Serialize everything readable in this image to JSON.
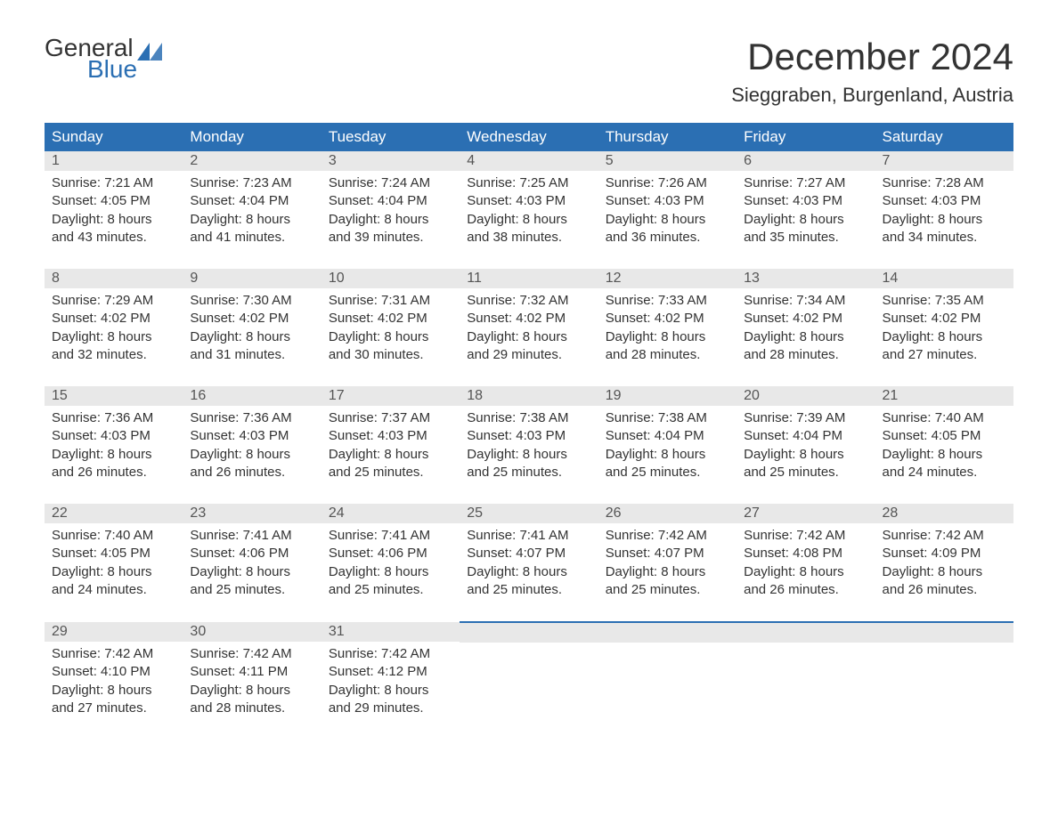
{
  "logo": {
    "line1": "General",
    "line2": "Blue"
  },
  "title": "December 2024",
  "location": "Sieggraben, Burgenland, Austria",
  "colors": {
    "header_bg": "#2b6fb3",
    "header_text": "#ffffff",
    "daynum_bg": "#e8e8e8",
    "daynum_text": "#555555",
    "body_text": "#333333",
    "row_border": "#2b6fb3",
    "logo_general": "#333333",
    "logo_blue": "#2b6fb3",
    "page_bg": "#ffffff"
  },
  "day_headers": [
    "Sunday",
    "Monday",
    "Tuesday",
    "Wednesday",
    "Thursday",
    "Friday",
    "Saturday"
  ],
  "labels": {
    "sunrise": "Sunrise:",
    "sunset": "Sunset:",
    "daylight": "Daylight:"
  },
  "weeks": [
    [
      {
        "day": "1",
        "sunrise": "7:21 AM",
        "sunset": "4:05 PM",
        "daylight1": "8 hours",
        "daylight2": "and 43 minutes."
      },
      {
        "day": "2",
        "sunrise": "7:23 AM",
        "sunset": "4:04 PM",
        "daylight1": "8 hours",
        "daylight2": "and 41 minutes."
      },
      {
        "day": "3",
        "sunrise": "7:24 AM",
        "sunset": "4:04 PM",
        "daylight1": "8 hours",
        "daylight2": "and 39 minutes."
      },
      {
        "day": "4",
        "sunrise": "7:25 AM",
        "sunset": "4:03 PM",
        "daylight1": "8 hours",
        "daylight2": "and 38 minutes."
      },
      {
        "day": "5",
        "sunrise": "7:26 AM",
        "sunset": "4:03 PM",
        "daylight1": "8 hours",
        "daylight2": "and 36 minutes."
      },
      {
        "day": "6",
        "sunrise": "7:27 AM",
        "sunset": "4:03 PM",
        "daylight1": "8 hours",
        "daylight2": "and 35 minutes."
      },
      {
        "day": "7",
        "sunrise": "7:28 AM",
        "sunset": "4:03 PM",
        "daylight1": "8 hours",
        "daylight2": "and 34 minutes."
      }
    ],
    [
      {
        "day": "8",
        "sunrise": "7:29 AM",
        "sunset": "4:02 PM",
        "daylight1": "8 hours",
        "daylight2": "and 32 minutes."
      },
      {
        "day": "9",
        "sunrise": "7:30 AM",
        "sunset": "4:02 PM",
        "daylight1": "8 hours",
        "daylight2": "and 31 minutes."
      },
      {
        "day": "10",
        "sunrise": "7:31 AM",
        "sunset": "4:02 PM",
        "daylight1": "8 hours",
        "daylight2": "and 30 minutes."
      },
      {
        "day": "11",
        "sunrise": "7:32 AM",
        "sunset": "4:02 PM",
        "daylight1": "8 hours",
        "daylight2": "and 29 minutes."
      },
      {
        "day": "12",
        "sunrise": "7:33 AM",
        "sunset": "4:02 PM",
        "daylight1": "8 hours",
        "daylight2": "and 28 minutes."
      },
      {
        "day": "13",
        "sunrise": "7:34 AM",
        "sunset": "4:02 PM",
        "daylight1": "8 hours",
        "daylight2": "and 28 minutes."
      },
      {
        "day": "14",
        "sunrise": "7:35 AM",
        "sunset": "4:02 PM",
        "daylight1": "8 hours",
        "daylight2": "and 27 minutes."
      }
    ],
    [
      {
        "day": "15",
        "sunrise": "7:36 AM",
        "sunset": "4:03 PM",
        "daylight1": "8 hours",
        "daylight2": "and 26 minutes."
      },
      {
        "day": "16",
        "sunrise": "7:36 AM",
        "sunset": "4:03 PM",
        "daylight1": "8 hours",
        "daylight2": "and 26 minutes."
      },
      {
        "day": "17",
        "sunrise": "7:37 AM",
        "sunset": "4:03 PM",
        "daylight1": "8 hours",
        "daylight2": "and 25 minutes."
      },
      {
        "day": "18",
        "sunrise": "7:38 AM",
        "sunset": "4:03 PM",
        "daylight1": "8 hours",
        "daylight2": "and 25 minutes."
      },
      {
        "day": "19",
        "sunrise": "7:38 AM",
        "sunset": "4:04 PM",
        "daylight1": "8 hours",
        "daylight2": "and 25 minutes."
      },
      {
        "day": "20",
        "sunrise": "7:39 AM",
        "sunset": "4:04 PM",
        "daylight1": "8 hours",
        "daylight2": "and 25 minutes."
      },
      {
        "day": "21",
        "sunrise": "7:40 AM",
        "sunset": "4:05 PM",
        "daylight1": "8 hours",
        "daylight2": "and 24 minutes."
      }
    ],
    [
      {
        "day": "22",
        "sunrise": "7:40 AM",
        "sunset": "4:05 PM",
        "daylight1": "8 hours",
        "daylight2": "and 24 minutes."
      },
      {
        "day": "23",
        "sunrise": "7:41 AM",
        "sunset": "4:06 PM",
        "daylight1": "8 hours",
        "daylight2": "and 25 minutes."
      },
      {
        "day": "24",
        "sunrise": "7:41 AM",
        "sunset": "4:06 PM",
        "daylight1": "8 hours",
        "daylight2": "and 25 minutes."
      },
      {
        "day": "25",
        "sunrise": "7:41 AM",
        "sunset": "4:07 PM",
        "daylight1": "8 hours",
        "daylight2": "and 25 minutes."
      },
      {
        "day": "26",
        "sunrise": "7:42 AM",
        "sunset": "4:07 PM",
        "daylight1": "8 hours",
        "daylight2": "and 25 minutes."
      },
      {
        "day": "27",
        "sunrise": "7:42 AM",
        "sunset": "4:08 PM",
        "daylight1": "8 hours",
        "daylight2": "and 26 minutes."
      },
      {
        "day": "28",
        "sunrise": "7:42 AM",
        "sunset": "4:09 PM",
        "daylight1": "8 hours",
        "daylight2": "and 26 minutes."
      }
    ],
    [
      {
        "day": "29",
        "sunrise": "7:42 AM",
        "sunset": "4:10 PM",
        "daylight1": "8 hours",
        "daylight2": "and 27 minutes."
      },
      {
        "day": "30",
        "sunrise": "7:42 AM",
        "sunset": "4:11 PM",
        "daylight1": "8 hours",
        "daylight2": "and 28 minutes."
      },
      {
        "day": "31",
        "sunrise": "7:42 AM",
        "sunset": "4:12 PM",
        "daylight1": "8 hours",
        "daylight2": "and 29 minutes."
      },
      null,
      null,
      null,
      null
    ]
  ]
}
